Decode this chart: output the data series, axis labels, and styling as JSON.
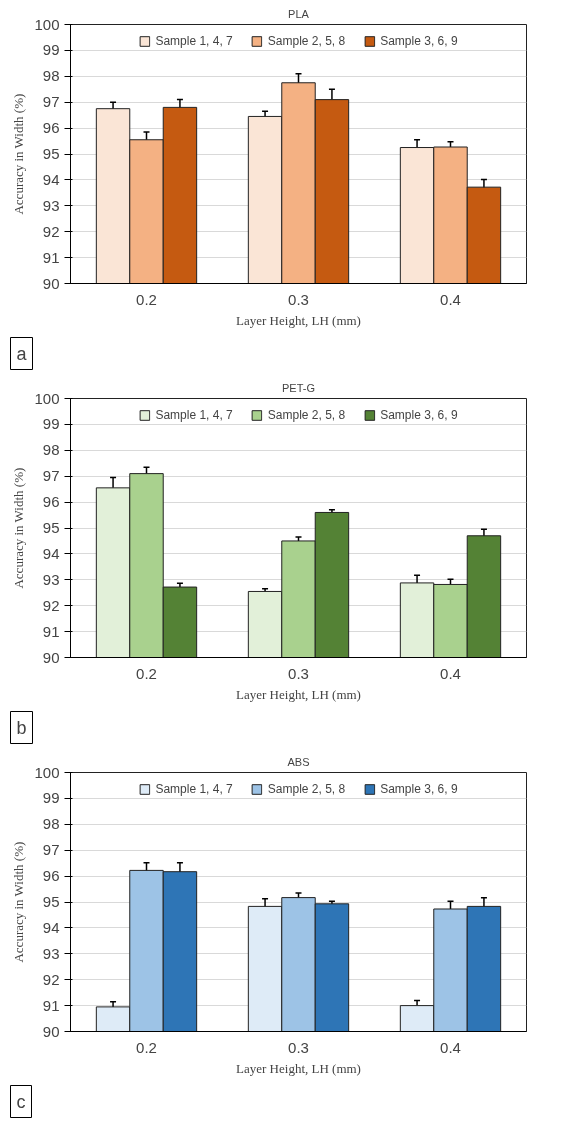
{
  "chart_data": [
    {
      "type": "bar",
      "title": "PLA",
      "xlabel": "Layer Height, LH (mm)",
      "ylabel": "Accuracy in Width (%)",
      "categories": [
        "0.2",
        "0.3",
        "0.4"
      ],
      "ylim": [
        90,
        100
      ],
      "yticks": [
        90,
        91,
        92,
        93,
        94,
        95,
        96,
        97,
        98,
        99,
        100
      ],
      "grid": "y",
      "legend": "top",
      "annotations": [
        "a"
      ],
      "series": [
        {
          "name": "Sample 1, 4, 7",
          "color": "#fae5d6",
          "values": [
            96.75,
            96.45,
            95.25
          ],
          "errors": [
            0.25,
            0.2,
            0.3
          ]
        },
        {
          "name": "Sample 2, 5, 8",
          "color": "#f4b183",
          "values": [
            95.55,
            97.75,
            95.27
          ],
          "errors": [
            0.3,
            0.35,
            0.2
          ]
        },
        {
          "name": "Sample 3, 6, 9",
          "color": "#c55a11",
          "values": [
            96.8,
            97.1,
            93.72
          ],
          "errors": [
            0.3,
            0.4,
            0.3
          ]
        }
      ]
    },
    {
      "type": "bar",
      "title": "PET-G",
      "xlabel": "Layer Height, LH (mm)",
      "ylabel": "Accuracy in Width (%)",
      "categories": [
        "0.2",
        "0.3",
        "0.4"
      ],
      "ylim": [
        90,
        100
      ],
      "yticks": [
        90,
        91,
        92,
        93,
        94,
        95,
        96,
        97,
        98,
        99,
        100
      ],
      "grid": "y",
      "legend": "top",
      "annotations": [
        "b"
      ],
      "series": [
        {
          "name": "Sample 1, 4, 7",
          "color": "#e2f0d9",
          "values": [
            96.55,
            92.55,
            92.88
          ],
          "errors": [
            0.4,
            0.1,
            0.3
          ]
        },
        {
          "name": "Sample 2, 5, 8",
          "color": "#a9d18e",
          "values": [
            97.1,
            94.5,
            92.82
          ],
          "errors": [
            0.25,
            0.15,
            0.2
          ]
        },
        {
          "name": "Sample 3, 6, 9",
          "color": "#548235",
          "values": [
            92.72,
            95.6,
            94.7
          ],
          "errors": [
            0.15,
            0.1,
            0.25
          ]
        }
      ]
    },
    {
      "type": "bar",
      "title": "ABS",
      "xlabel": "Layer Height, LH (mm)",
      "ylabel": "Accuracy in Width (%)",
      "categories": [
        "0.2",
        "0.3",
        "0.4"
      ],
      "ylim": [
        90,
        100
      ],
      "yticks": [
        90,
        91,
        92,
        93,
        94,
        95,
        96,
        97,
        98,
        99,
        100
      ],
      "grid": "y",
      "legend": "top",
      "annotations": [
        "c"
      ],
      "series": [
        {
          "name": "Sample 1, 4, 7",
          "color": "#deebf7",
          "values": [
            90.95,
            94.83,
            91.0
          ],
          "errors": [
            0.2,
            0.3,
            0.2
          ]
        },
        {
          "name": "Sample 2, 5, 8",
          "color": "#9dc3e6",
          "values": [
            96.22,
            95.17,
            94.73
          ],
          "errors": [
            0.3,
            0.18,
            0.3
          ]
        },
        {
          "name": "Sample 3, 6, 9",
          "color": "#2e75b6",
          "values": [
            96.17,
            94.93,
            94.83
          ],
          "errors": [
            0.35,
            0.1,
            0.33
          ]
        }
      ]
    }
  ]
}
